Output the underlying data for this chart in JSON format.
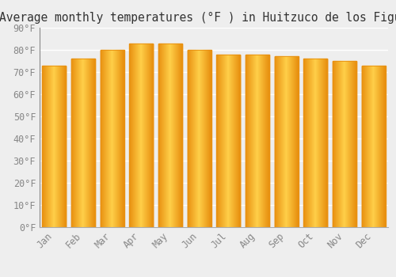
{
  "title": "Average monthly temperatures (°F ) in Huitzuco de los Figueroa",
  "months": [
    "Jan",
    "Feb",
    "Mar",
    "Apr",
    "May",
    "Jun",
    "Jul",
    "Aug",
    "Sep",
    "Oct",
    "Nov",
    "Dec"
  ],
  "values": [
    73,
    76,
    80,
    83,
    83,
    80,
    78,
    78,
    77,
    76,
    75,
    73
  ],
  "bar_color_center": "#FFD04A",
  "bar_color_edge": "#E89010",
  "background_color": "#eeeeee",
  "ylim": [
    0,
    90
  ],
  "yticks": [
    0,
    10,
    20,
    30,
    40,
    50,
    60,
    70,
    80,
    90
  ],
  "grid_color": "#ffffff",
  "title_fontsize": 10.5,
  "tick_fontsize": 8.5,
  "bar_width": 0.82
}
